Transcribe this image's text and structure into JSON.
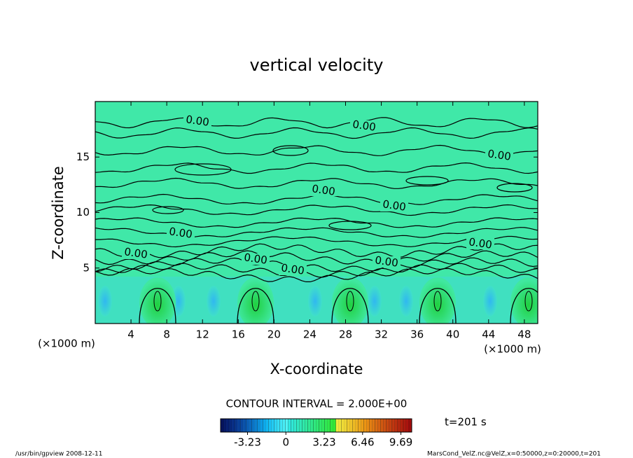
{
  "chart_data": {
    "type": "contour",
    "title": "vertical velocity",
    "x_label": "X-coordinate",
    "y_label": "Z-coordinate",
    "x_unit": "(×1000 m)",
    "y_unit": "(×1000 m)",
    "xlim": [
      0,
      49.5
    ],
    "xticks": [
      4,
      8,
      12,
      16,
      20,
      24,
      28,
      32,
      36,
      40,
      44,
      48
    ],
    "ylim": [
      0,
      20
    ],
    "yticks": [
      5,
      10,
      15
    ],
    "contour_label": "0.00",
    "contour_interval": "CONTOUR INTERVAL = 2.000E+00",
    "time_label": "t=201 s",
    "colorbar": {
      "lim": [
        -5.5,
        10.6
      ],
      "ticks": [
        -3.23,
        0,
        3.23,
        6.46,
        9.69
      ]
    },
    "footer_left": "/usr/bin/gpview   2008-12-11",
    "footer_right": "MarsCond_VelZ.nc@VelZ,x=0:50000,z=0:20000,t=201"
  }
}
